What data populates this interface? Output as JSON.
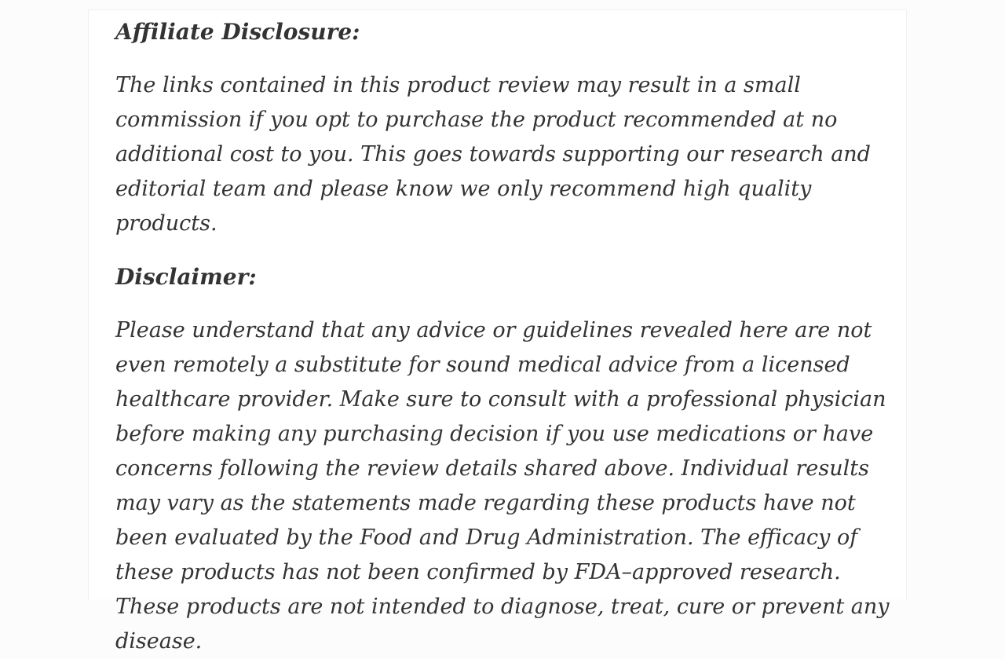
{
  "page": {
    "background_color": "#fcfcfc",
    "card_background_color": "#ffffff",
    "card_border_color": "#f0f0f0",
    "text_color": "#333333"
  },
  "article": {
    "sections": [
      {
        "heading": "Affiliate Disclosure:",
        "body": "The links contained in this product review may result in a small commission if you opt to purchase the product recommended at no additional cost to you. This goes towards supporting our research and editorial team and please know we only recommend high quality products."
      },
      {
        "heading": "Disclaimer:",
        "body": "Please understand that any advice or guidelines revealed here are not even remotely a substitute for sound medical advice from a licensed healthcare provider. Make sure to consult with a professional physician before making any purchasing decision if you use medications or have concerns following the review details shared above. Individual results may vary as the statements made regarding these products have not been evaluated by the Food and Drug Administration. The efficacy of these products has not been confirmed by FDA–approved research. These products are not intended to diagnose, treat, cure or prevent any disease."
      }
    ]
  }
}
